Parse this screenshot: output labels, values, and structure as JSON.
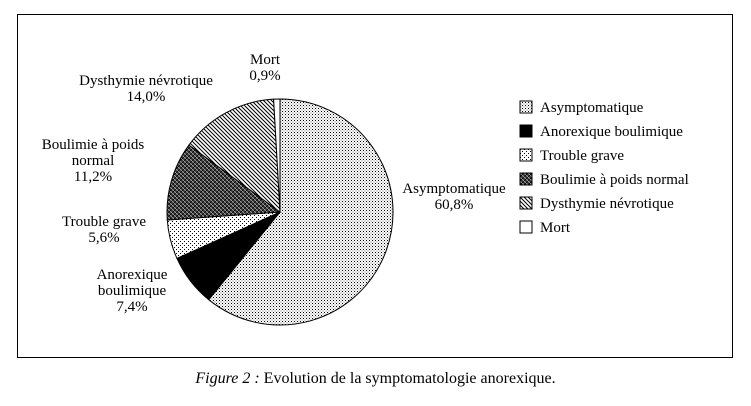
{
  "chart_data": {
    "type": "pie",
    "categories": [
      "Asymptomatique",
      "Anorexique boulimique",
      "Trouble grave",
      "Boulimie à poids normal",
      "Dysthymie névrotique",
      "Mort"
    ],
    "values": [
      60.8,
      7.4,
      5.6,
      11.2,
      14.0,
      0.9
    ],
    "value_labels": [
      "60,8%",
      "7,4%",
      "5,6%",
      "11,2%",
      "14,0%",
      "0,9%"
    ],
    "slice_labels": [
      [
        "Asymptomatique",
        "60,8%"
      ],
      [
        "Anorexique",
        "boulimique",
        "7,4%"
      ],
      [
        "Trouble grave",
        "5,6%"
      ],
      [
        "Boulimie à poids",
        "normal",
        "11,2%"
      ],
      [
        "Dysthymie névrotique",
        "14,0%"
      ],
      [
        "Mort",
        "0,9%"
      ]
    ],
    "legend": [
      "Asymptomatique",
      "Anorexique boulimique",
      "Trouble grave",
      "Boulimie à poids normal",
      "Dysthymie névrotique",
      "Mort"
    ],
    "legend_position": "right",
    "patterns": [
      "fine-dots",
      "solid-black",
      "light-dots",
      "dense-crosshatch",
      "diagonal-hatch",
      "white"
    ],
    "colors": {
      "stroke": "#000000",
      "background": "#ffffff"
    }
  },
  "caption": {
    "figure": "Figure 2 :",
    "text": "Evolution de la symptomatologie anorexique."
  }
}
